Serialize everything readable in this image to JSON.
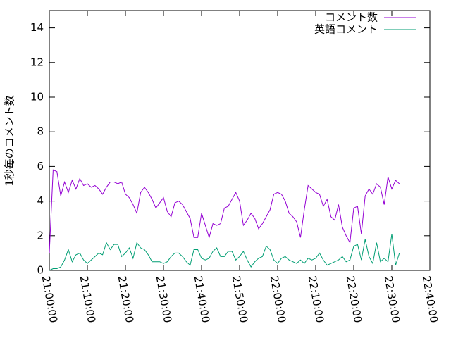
{
  "chart_data": {
    "type": "line",
    "ylabel": "1秒毎のコメント数",
    "x": [
      "21:00:00",
      "21:01:00",
      "21:02:00",
      "21:03:00",
      "21:04:00",
      "21:05:00",
      "21:06:00",
      "21:07:00",
      "21:08:00",
      "21:09:00",
      "21:10:00",
      "21:11:00",
      "21:12:00",
      "21:13:00",
      "21:14:00",
      "21:15:00",
      "21:16:00",
      "21:17:00",
      "21:18:00",
      "21:19:00",
      "21:20:00",
      "21:21:00",
      "21:22:00",
      "21:23:00",
      "21:24:00",
      "21:25:00",
      "21:26:00",
      "21:27:00",
      "21:28:00",
      "21:29:00",
      "21:30:00",
      "21:31:00",
      "21:32:00",
      "21:33:00",
      "21:34:00",
      "21:35:00",
      "21:36:00",
      "21:37:00",
      "21:38:00",
      "21:39:00",
      "21:40:00",
      "21:41:00",
      "21:42:00",
      "21:43:00",
      "21:44:00",
      "21:45:00",
      "21:46:00",
      "21:47:00",
      "21:48:00",
      "21:49:00",
      "21:50:00",
      "21:51:00",
      "21:52:00",
      "21:53:00",
      "21:54:00",
      "21:55:00",
      "21:56:00",
      "21:57:00",
      "21:58:00",
      "21:59:00",
      "22:00:00",
      "22:01:00",
      "22:02:00",
      "22:03:00",
      "22:04:00",
      "22:05:00",
      "22:06:00",
      "22:07:00",
      "22:08:00",
      "22:09:00",
      "22:10:00",
      "22:11:00",
      "22:12:00",
      "22:13:00",
      "22:14:00",
      "22:15:00",
      "22:16:00",
      "22:17:00",
      "22:18:00",
      "22:19:00",
      "22:20:00",
      "22:21:00",
      "22:22:00",
      "22:23:00",
      "22:24:00",
      "22:25:00",
      "22:26:00",
      "22:27:00",
      "22:28:00",
      "22:29:00",
      "22:30:00",
      "22:31:00",
      "22:32:00"
    ],
    "series": [
      {
        "name": "コメント数",
        "color": "#9400d3",
        "values": [
          1.0,
          5.8,
          5.7,
          4.3,
          5.1,
          4.5,
          5.2,
          4.7,
          5.3,
          4.9,
          5.0,
          4.8,
          4.9,
          4.7,
          4.4,
          4.8,
          5.1,
          5.1,
          5.0,
          5.1,
          4.4,
          4.2,
          3.8,
          3.3,
          4.5,
          4.8,
          4.5,
          4.1,
          3.6,
          3.9,
          4.2,
          3.4,
          3.1,
          3.9,
          4.0,
          3.8,
          3.4,
          3.0,
          1.9,
          1.9,
          3.3,
          2.6,
          1.9,
          2.7,
          2.6,
          2.7,
          3.6,
          3.7,
          4.1,
          4.5,
          4.0,
          2.6,
          2.9,
          3.3,
          3.0,
          2.4,
          2.7,
          3.1,
          3.5,
          4.4,
          4.5,
          4.4,
          4.0,
          3.3,
          3.1,
          2.8,
          1.9,
          3.5,
          4.9,
          4.7,
          4.5,
          4.4,
          3.7,
          4.1,
          3.1,
          2.9,
          3.8,
          2.5,
          2.0,
          1.6,
          3.6,
          3.7,
          2.1,
          4.3,
          4.7,
          4.4,
          5.0,
          4.8,
          3.8,
          5.4,
          4.7,
          5.2,
          5.0
        ]
      },
      {
        "name": "英語コメント",
        "color": "#009e73",
        "values": [
          0.0,
          0.1,
          0.1,
          0.2,
          0.6,
          1.2,
          0.5,
          0.9,
          1.0,
          0.6,
          0.4,
          0.6,
          0.8,
          1.0,
          0.9,
          1.6,
          1.2,
          1.5,
          1.5,
          0.8,
          1.0,
          1.3,
          0.7,
          1.6,
          1.3,
          1.2,
          0.9,
          0.5,
          0.5,
          0.5,
          0.4,
          0.5,
          0.8,
          1.0,
          1.0,
          0.8,
          0.5,
          0.3,
          1.2,
          1.2,
          0.7,
          0.6,
          0.7,
          1.1,
          1.3,
          0.8,
          0.8,
          1.1,
          1.1,
          0.6,
          0.8,
          1.1,
          0.6,
          0.2,
          0.5,
          0.7,
          0.8,
          1.4,
          1.2,
          0.6,
          0.4,
          0.7,
          0.8,
          0.6,
          0.5,
          0.4,
          0.6,
          0.4,
          0.7,
          0.6,
          0.7,
          1.0,
          0.6,
          0.3,
          0.4,
          0.5,
          0.6,
          0.8,
          0.5,
          0.6,
          1.4,
          1.5,
          0.6,
          1.8,
          0.8,
          0.4,
          1.6,
          0.5,
          0.7,
          0.5,
          2.1,
          0.3,
          1.0
        ]
      }
    ],
    "xlim": [
      "21:00:00",
      "22:40:00"
    ],
    "xticks": [
      "21:00:00",
      "21:10:00",
      "21:20:00",
      "21:30:00",
      "21:40:00",
      "21:50:00",
      "22:00:00",
      "22:10:00",
      "22:20:00",
      "22:30:00",
      "22:40:00"
    ],
    "ylim": [
      0,
      15
    ],
    "yticks": [
      0,
      2,
      4,
      6,
      8,
      10,
      12,
      14
    ],
    "legend": "upper right"
  }
}
